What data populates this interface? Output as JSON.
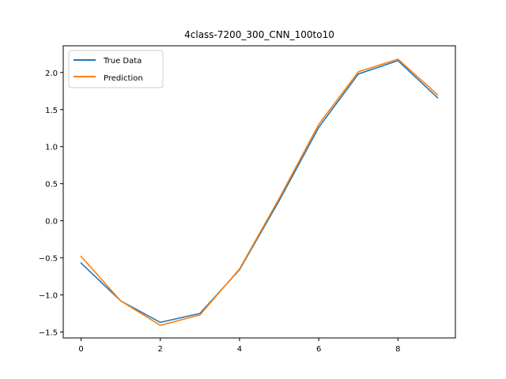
{
  "chart_data": {
    "type": "line",
    "title": "4class-7200_300_CNN_100to10",
    "xlabel": "",
    "ylabel": "",
    "x": [
      0,
      1,
      2,
      3,
      4,
      5,
      6,
      7,
      8,
      9
    ],
    "xlim": [
      -0.45,
      9.45
    ],
    "ylim": [
      -1.58,
      2.36
    ],
    "xticks": [
      0,
      2,
      4,
      6,
      8
    ],
    "xtick_labels": [
      "0",
      "2",
      "4",
      "6",
      "8"
    ],
    "yticks": [
      -1.5,
      -1.0,
      -0.5,
      0.0,
      0.5,
      1.0,
      1.5,
      2.0
    ],
    "ytick_labels": [
      "−1.5",
      "−1.0",
      "−0.5",
      "0.0",
      "0.5",
      "1.0",
      "1.5",
      "2.0"
    ],
    "grid": false,
    "legend_position": "upper-left",
    "series": [
      {
        "name": "True Data",
        "color": "#1f77b4",
        "values": [
          -0.57,
          -1.08,
          -1.37,
          -1.25,
          -0.66,
          0.27,
          1.26,
          1.98,
          2.16,
          1.66
        ]
      },
      {
        "name": "Prediction",
        "color": "#ff7f0e",
        "values": [
          -0.48,
          -1.08,
          -1.41,
          -1.27,
          -0.65,
          0.3,
          1.3,
          2.01,
          2.18,
          1.7
        ]
      }
    ]
  }
}
